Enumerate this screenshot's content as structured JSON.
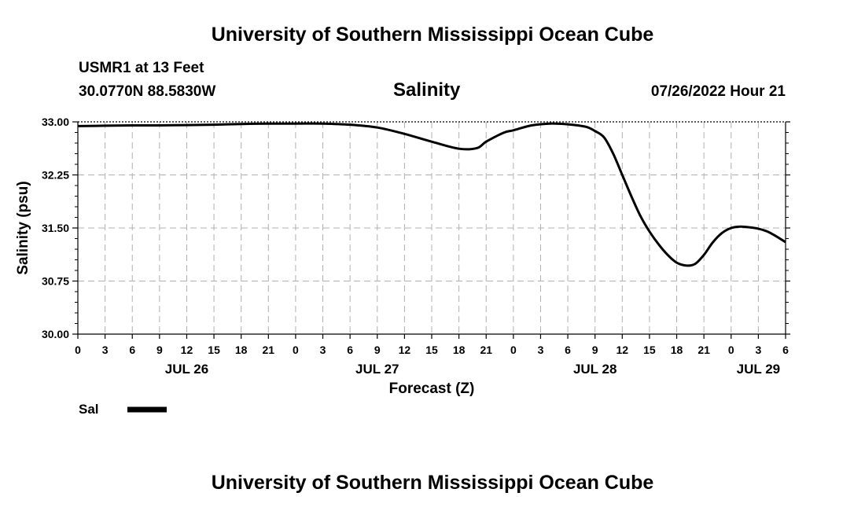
{
  "header": {
    "main_title": "University of Southern Mississippi Ocean Cube",
    "station_line": "USMR1 at 13 Feet",
    "coords_line": "30.0770N  88.5830W",
    "datetime": "07/26/2022 Hour 21"
  },
  "footer": {
    "title": "University of Southern Mississippi Ocean Cube"
  },
  "chart_data": {
    "type": "line",
    "title": "Salinity",
    "xlabel": "Forecast (Z)",
    "ylabel": "Salinity (psu)",
    "ylim": [
      30.0,
      33.0
    ],
    "xlim": [
      0,
      78
    ],
    "yticks": [
      30.0,
      30.75,
      31.5,
      32.25,
      33.0
    ],
    "ytick_labels": [
      "30.00",
      "30.75",
      "31.50",
      "32.25",
      "33.00"
    ],
    "xticks": [
      0,
      3,
      6,
      9,
      12,
      15,
      18,
      21,
      24,
      27,
      30,
      33,
      36,
      39,
      42,
      45,
      48,
      51,
      54,
      57,
      60,
      63,
      66,
      69,
      72,
      75,
      78
    ],
    "xtick_labels": [
      "0",
      "3",
      "6",
      "9",
      "12",
      "15",
      "18",
      "21",
      "0",
      "3",
      "6",
      "9",
      "12",
      "15",
      "18",
      "21",
      "0",
      "3",
      "6",
      "9",
      "12",
      "15",
      "18",
      "21",
      "0",
      "3",
      "6"
    ],
    "date_labels": [
      {
        "x": 12,
        "label": "JUL 26"
      },
      {
        "x": 33,
        "label": "JUL 27"
      },
      {
        "x": 57,
        "label": "JUL 28"
      },
      {
        "x": 75,
        "label": "JUL 29"
      }
    ],
    "grid": true,
    "legend": "bottom-left",
    "series": [
      {
        "name": "Sal",
        "color": "#000000",
        "x": [
          0,
          3,
          6,
          9,
          12,
          15,
          18,
          21,
          24,
          27,
          30,
          33,
          36,
          39,
          42,
          44,
          45,
          47,
          48,
          50,
          52,
          54,
          56,
          57,
          58,
          59,
          60,
          61,
          62,
          63,
          64,
          65,
          66,
          67,
          68,
          69,
          70,
          71,
          72,
          73,
          74,
          75,
          76,
          77,
          78
        ],
        "y": [
          32.94,
          32.945,
          32.95,
          32.95,
          32.955,
          32.96,
          32.97,
          32.975,
          32.975,
          32.975,
          32.96,
          32.92,
          32.83,
          32.72,
          32.62,
          32.63,
          32.72,
          32.85,
          32.88,
          32.95,
          32.975,
          32.965,
          32.93,
          32.87,
          32.78,
          32.55,
          32.25,
          31.95,
          31.67,
          31.45,
          31.27,
          31.12,
          31.01,
          30.97,
          30.99,
          31.12,
          31.3,
          31.43,
          31.5,
          31.52,
          31.51,
          31.49,
          31.45,
          31.38,
          31.3
        ]
      }
    ]
  }
}
